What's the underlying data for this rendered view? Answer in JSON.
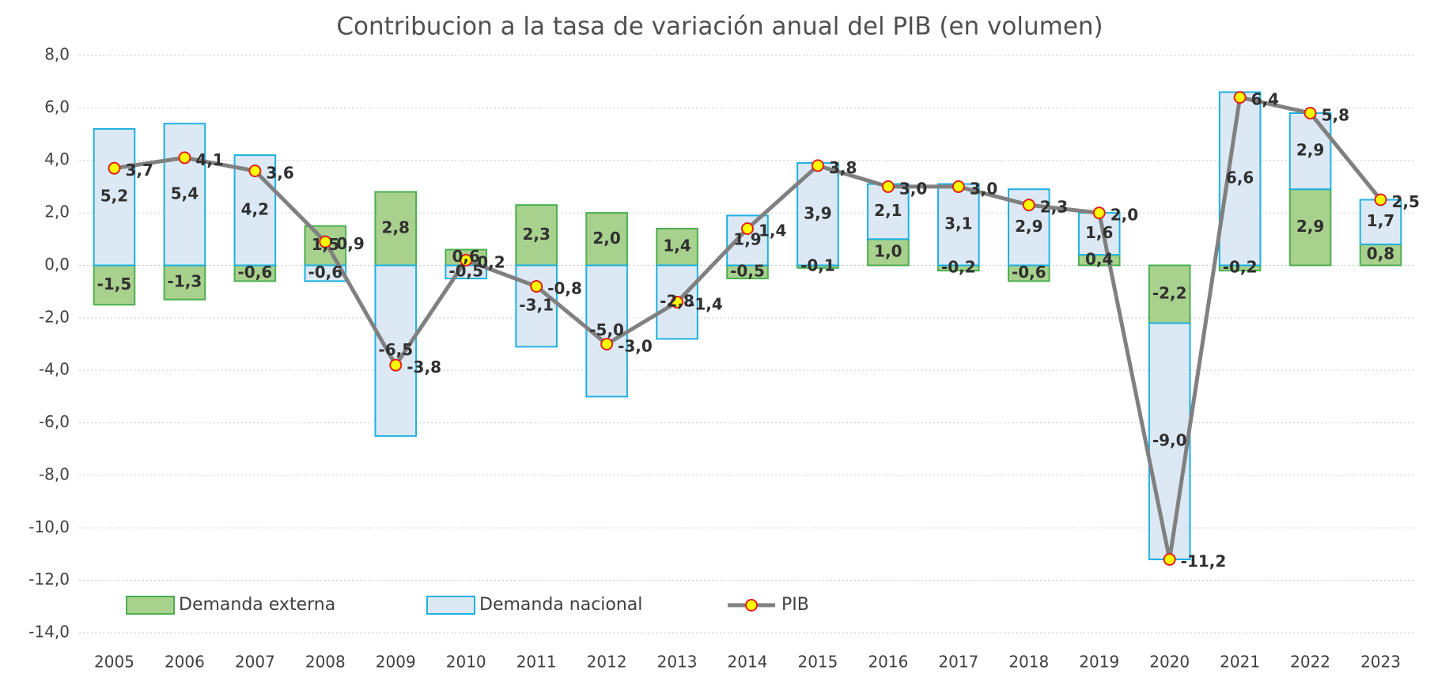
{
  "chart_data": {
    "type": "bar",
    "stacked": true,
    "title": "Contribucion a la tasa de variación anual del PIB (en volumen)",
    "categories": [
      "2005",
      "2006",
      "2007",
      "2008",
      "2009",
      "2010",
      "2011",
      "2012",
      "2013",
      "2014",
      "2015",
      "2016",
      "2017",
      "2018",
      "2019",
      "2020",
      "2021",
      "2022",
      "2023"
    ],
    "series": [
      {
        "name": "Demanda externa",
        "type": "bar",
        "color": "#a9d18e",
        "edge": "#4caf50",
        "values": [
          -1.5,
          -1.3,
          -0.6,
          1.5,
          2.8,
          0.6,
          2.3,
          2.0,
          1.4,
          -0.5,
          -0.1,
          1.0,
          -0.2,
          -0.6,
          0.4,
          -2.2,
          -0.2,
          2.9,
          0.8
        ],
        "value_labels": [
          "-1,5",
          "-1,3",
          "-0,6",
          "1,5",
          "2,8",
          "0,6",
          "2,3",
          "2,0",
          "1,4",
          "-0,5",
          "-0,1",
          "1,0",
          "-0,2",
          "-0,6",
          "0,4",
          "-2,2",
          "-0,2",
          "2,9",
          "0,8"
        ]
      },
      {
        "name": "Demanda nacional",
        "type": "bar",
        "color": "#dce9f5",
        "edge": "#1fb0e0",
        "values": [
          5.2,
          5.4,
          4.2,
          -0.6,
          -6.5,
          -0.5,
          -3.1,
          -5.0,
          -2.8,
          1.9,
          3.9,
          2.1,
          3.1,
          2.9,
          1.6,
          -9.0,
          6.6,
          2.9,
          1.7
        ],
        "value_labels": [
          "5,2",
          "5,4",
          "4,2",
          "-0,6",
          "-6,5",
          "-0,5",
          "-3,1",
          "-5,0",
          "-2,8",
          "1,9",
          "3,9",
          "2,1",
          "3,1",
          "2,9",
          "1,6",
          "-9,0",
          "6,6",
          "2,9",
          "1,7"
        ]
      },
      {
        "name": "PIB",
        "type": "line",
        "color": "#808080",
        "marker_fill": "#ffff00",
        "marker_edge": "#e02020",
        "values": [
          3.7,
          4.1,
          3.6,
          0.9,
          -3.8,
          0.2,
          -0.8,
          -3.0,
          -1.4,
          1.4,
          3.8,
          3.0,
          3.0,
          2.3,
          2.0,
          -11.2,
          6.4,
          5.8,
          2.5
        ],
        "value_labels": [
          "3,7",
          "4,1",
          "3,6",
          "0,9",
          "-3,8",
          "0,2",
          "-0,8",
          "-3,0",
          "-1,4",
          "1,4",
          "3,8",
          "3,0",
          "3,0",
          "2,3",
          "2,0",
          "-11,2",
          "6,4",
          "5,8",
          "2,5"
        ]
      }
    ],
    "ylim": [
      -14,
      8
    ],
    "yticks": [
      {
        "value": 8,
        "label": "8,0"
      },
      {
        "value": 6,
        "label": "6,0"
      },
      {
        "value": 4,
        "label": "4,0"
      },
      {
        "value": 2,
        "label": "2,0"
      },
      {
        "value": 0,
        "label": "0,0"
      },
      {
        "value": -2,
        "label": "-2,0"
      },
      {
        "value": -4,
        "label": "-4,0"
      },
      {
        "value": -6,
        "label": "-6,0"
      },
      {
        "value": -8,
        "label": "-8,0"
      },
      {
        "value": -10,
        "label": "-10,0"
      },
      {
        "value": -12,
        "label": "-12,0"
      },
      {
        "value": -14,
        "label": "-14,0"
      }
    ],
    "grid": true,
    "legend": "lower left"
  }
}
